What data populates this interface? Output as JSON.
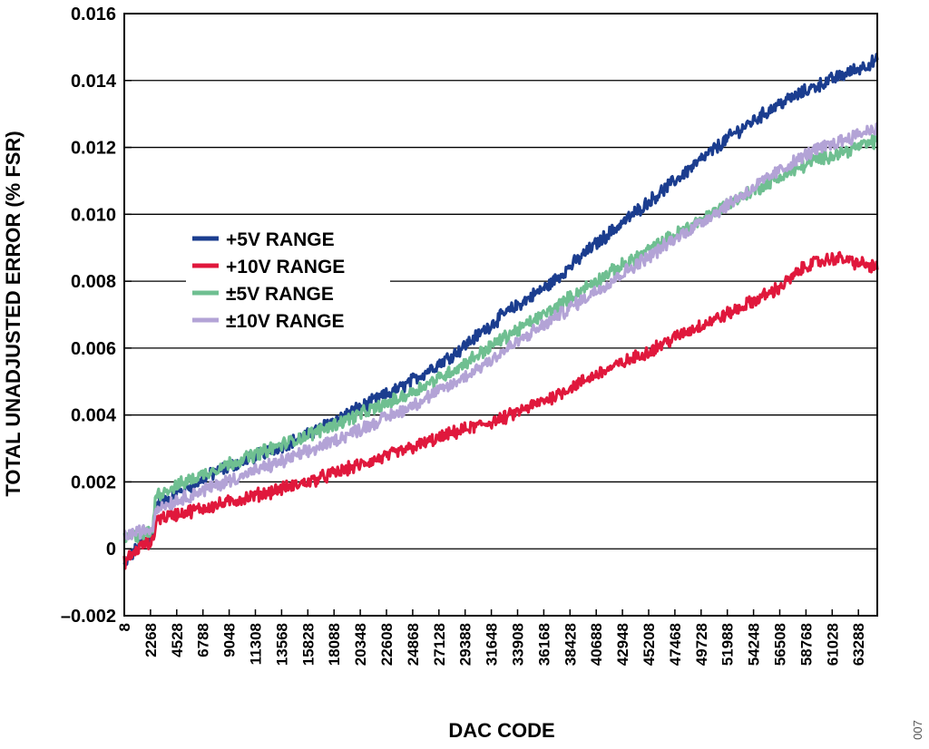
{
  "figure_id": "007",
  "colors": {
    "plus5v": "#1b3d8f",
    "plus10v": "#e0183c",
    "pm5v": "#6fbf91",
    "pm10v": "#b3a3d6",
    "grid": "#000000"
  },
  "chart_data": {
    "type": "line",
    "xlabel": "DAC CODE",
    "ylabel": "TOTAL UNADJUSTED ERROR (% FSR)",
    "ylim": [
      -0.002,
      0.016
    ],
    "xlim": [
      8,
      65535
    ],
    "y_ticks": [
      -0.002,
      0,
      0.002,
      0.004,
      0.006,
      0.008,
      0.01,
      0.012,
      0.014,
      0.016
    ],
    "y_tick_labels": [
      "–0.002",
      "0",
      "0.002",
      "0.004",
      "0.006",
      "0.008",
      "0.010",
      "0.012",
      "0.014",
      "0.016"
    ],
    "x_tick_labels": [
      "8",
      "2268",
      "4528",
      "6788",
      "9048",
      "11308",
      "13568",
      "15828",
      "18088",
      "20348",
      "22608",
      "24868",
      "27128",
      "29388",
      "31648",
      "33908",
      "36168",
      "38428",
      "40688",
      "42948",
      "45208",
      "47468",
      "49728",
      "51988",
      "54248",
      "56508",
      "58768",
      "61028",
      "63288"
    ],
    "grid": "horizontal",
    "legend_position": "upper-left",
    "series": [
      {
        "name": "+5V RANGE",
        "color": "#1b3d8f",
        "x": [
          8,
          1500,
          2500,
          2700,
          8000,
          16000,
          18000,
          24000,
          29000,
          33000,
          37000,
          41000,
          45000,
          49000,
          53000,
          57000,
          60000,
          65535
        ],
        "y": [
          -0.0005,
          0.0002,
          0.0004,
          0.0013,
          0.0023,
          0.0034,
          0.0038,
          0.0048,
          0.0059,
          0.007,
          0.0079,
          0.0091,
          0.0102,
          0.0113,
          0.0124,
          0.0133,
          0.0138,
          0.0146
        ]
      },
      {
        "name": "+10V RANGE",
        "color": "#e0183c",
        "x": [
          8,
          1500,
          2500,
          2800,
          8000,
          16000,
          24000,
          29000,
          33000,
          37000,
          41000,
          45000,
          49000,
          53000,
          57000,
          59500,
          62000,
          65535
        ],
        "y": [
          -0.0004,
          0.0001,
          0.0002,
          0.0009,
          0.0013,
          0.002,
          0.0029,
          0.0035,
          0.0039,
          0.0045,
          0.0052,
          0.0058,
          0.0065,
          0.0071,
          0.0078,
          0.0085,
          0.0087,
          0.0084
        ]
      },
      {
        "name": "±5V RANGE",
        "color": "#6fbf91",
        "x": [
          8,
          2500,
          2700,
          8000,
          16000,
          24000,
          29000,
          33000,
          37000,
          41000,
          45000,
          49000,
          53000,
          57000,
          60000,
          65535
        ],
        "y": [
          0.0003,
          0.0005,
          0.0016,
          0.0024,
          0.0034,
          0.0045,
          0.0054,
          0.0063,
          0.0071,
          0.008,
          0.0088,
          0.0096,
          0.0104,
          0.0111,
          0.0116,
          0.0122
        ]
      },
      {
        "name": "±10V RANGE",
        "color": "#b3a3d6",
        "x": [
          8,
          2500,
          2700,
          8000,
          16000,
          24000,
          29000,
          33000,
          37000,
          41000,
          45000,
          49000,
          53000,
          57000,
          60000,
          65535
        ],
        "y": [
          0.0004,
          0.0006,
          0.0012,
          0.0019,
          0.0029,
          0.0041,
          0.005,
          0.0059,
          0.0068,
          0.0077,
          0.0086,
          0.0095,
          0.0104,
          0.0113,
          0.0119,
          0.0126
        ]
      }
    ]
  }
}
